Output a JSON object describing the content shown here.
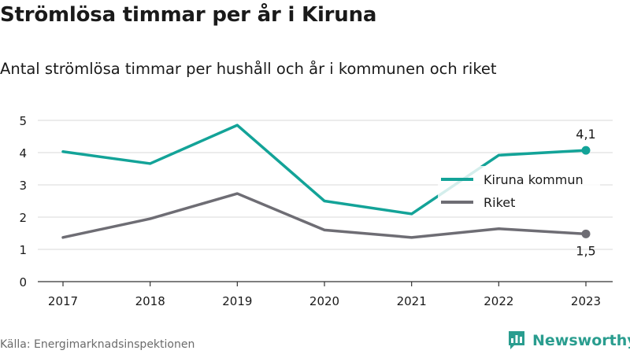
{
  "title": "Strömlösa timmar per år i Kiruna",
  "subtitle": "Antal strömlösa timmar per hushåll och år i kommunen och riket",
  "source": "Källa: Energimarknadsinspektionen",
  "brand": {
    "name": "Newsworthy",
    "logo_icon": "chart-bars-icon"
  },
  "colors": {
    "kiruna": "#13a398",
    "riket": "#6e6d74",
    "grid": "#d9d9d9",
    "axis": "#333333"
  },
  "chart_data": {
    "type": "line",
    "x": [
      "2017",
      "2018",
      "2019",
      "2020",
      "2021",
      "2022",
      "2023"
    ],
    "ylim": [
      0,
      5
    ],
    "yticks": [
      0,
      1,
      2,
      3,
      4,
      5
    ],
    "grid": true,
    "legend_position": "right",
    "series": [
      {
        "name": "Kiruna kommun",
        "values": [
          4.03,
          3.66,
          4.85,
          2.5,
          2.1,
          3.92,
          4.07
        ],
        "end_label": "4,1"
      },
      {
        "name": "Riket",
        "values": [
          1.37,
          1.95,
          2.73,
          1.6,
          1.37,
          1.64,
          1.48
        ],
        "end_label": "1,5"
      }
    ]
  }
}
